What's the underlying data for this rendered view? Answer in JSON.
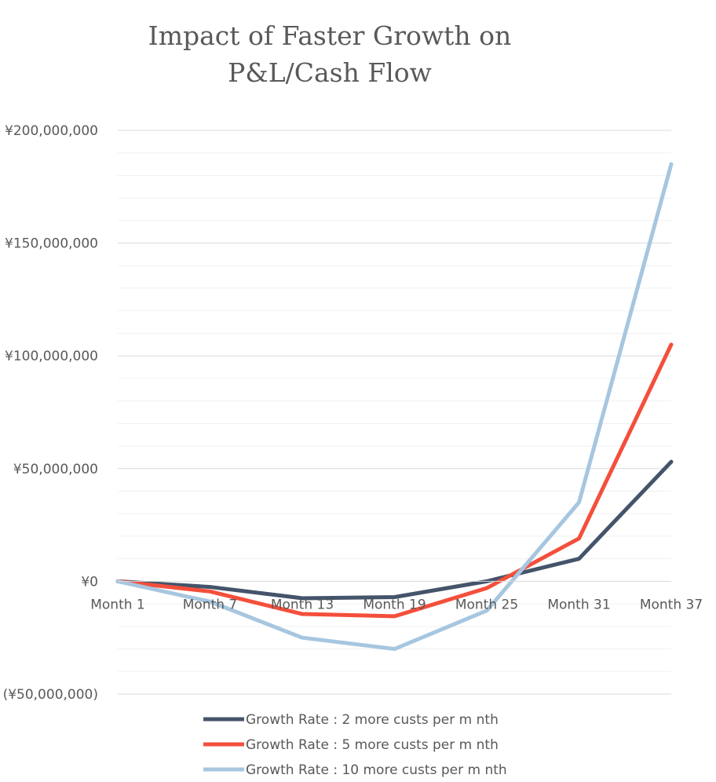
{
  "chart_data": {
    "type": "line",
    "title_lines": [
      "Impact of Faster Growth on",
      "P&L/Cash Flow"
    ],
    "categories": [
      "Month 1",
      "Month 7",
      "Month 13",
      "Month 19",
      "Month 25",
      "Month 31",
      "Month 37"
    ],
    "yticks": [
      {
        "value": 200000000,
        "label": "¥200,000,000"
      },
      {
        "value": 150000000,
        "label": "¥150,000,000"
      },
      {
        "value": 100000000,
        "label": "¥100,000,000"
      },
      {
        "value": 50000000,
        "label": "¥50,000,000"
      },
      {
        "value": 0,
        "label": "¥0"
      },
      {
        "value": -50000000,
        "label": "(¥50,000,000)"
      }
    ],
    "ylim": [
      -50000000,
      200000000
    ],
    "grid": true,
    "legend_position": "bottom",
    "series": [
      {
        "name": "Growth Rate : 2 more custs per m nth",
        "color": "#44546a",
        "values": [
          0,
          -2500000,
          -7500000,
          -7000000,
          0,
          10000000,
          53000000
        ]
      },
      {
        "name": "Growth Rate : 5 more custs per m nth",
        "color": "#f44f3b",
        "values": [
          0,
          -4500000,
          -14500000,
          -15500000,
          -3000000,
          19000000,
          105000000
        ]
      },
      {
        "name": "Growth Rate : 10 more custs per m nth",
        "color": "#a7c6df",
        "values": [
          0,
          -9000000,
          -25000000,
          -30000000,
          -13000000,
          35000000,
          185000000
        ]
      }
    ]
  }
}
